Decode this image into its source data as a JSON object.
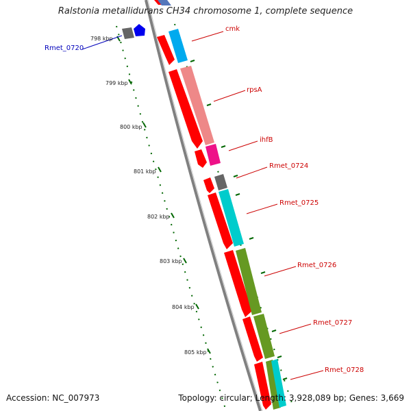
{
  "title": "Ralstonia metallidurans CH34 chromosome 1, complete sequence",
  "footer": {
    "accession": "Accession: NC_007973",
    "topology": "Topology: circular; Length: 3,928,089 bp; Genes: 3,669"
  },
  "ticks": [
    "798 kbp",
    "799 kbp",
    "800 kbp",
    "801 kbp",
    "802 kbp",
    "803 kbp",
    "804 kbp",
    "805 kbp"
  ],
  "genes": [
    {
      "name": "cmk",
      "color": "#cc0000"
    },
    {
      "name": "rpsA",
      "color": "#cc0000"
    },
    {
      "name": "ihfB",
      "color": "#cc0000"
    },
    {
      "name": "Rmet_0724",
      "color": "#cc0000"
    },
    {
      "name": "Rmet_0725",
      "color": "#cc0000"
    },
    {
      "name": "Rmet_0726",
      "color": "#cc0000"
    },
    {
      "name": "Rmet_0727",
      "color": "#cc0000"
    },
    {
      "name": "Rmet_0728",
      "color": "#cc0000"
    },
    {
      "name": "Rmet_0720",
      "color": "#0000bb"
    }
  ],
  "colors": {
    "backbone": "#808080",
    "gene": "#ff0000",
    "cog_blue": "#00aaee",
    "cog_salmon": "#ee8888",
    "cog_magenta": "#ee1188",
    "cog_gray": "#666666",
    "cog_cyan": "#00cccc",
    "cog_olive": "#669922",
    "ticks": "#006600"
  }
}
